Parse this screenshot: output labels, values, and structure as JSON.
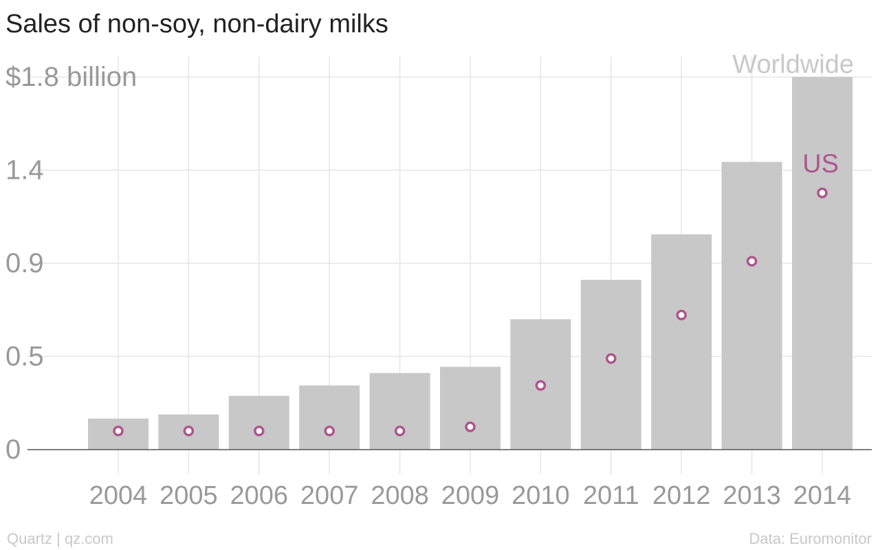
{
  "chart_data": {
    "type": "bar",
    "title": "Sales of non-soy, non-dairy milks",
    "categories": [
      "2004",
      "2005",
      "2006",
      "2007",
      "2008",
      "2009",
      "2010",
      "2011",
      "2012",
      "2013",
      "2014"
    ],
    "series": [
      {
        "name": "Worldwide",
        "mark": "bar",
        "values": [
          0.15,
          0.17,
          0.26,
          0.31,
          0.37,
          0.4,
          0.63,
          0.82,
          1.04,
          1.39,
          1.8
        ]
      },
      {
        "name": "US",
        "mark": "circle",
        "values": [
          0.09,
          0.09,
          0.09,
          0.09,
          0.09,
          0.11,
          0.31,
          0.44,
          0.65,
          0.91,
          1.24
        ]
      }
    ],
    "y_ticks": [
      {
        "value": 0,
        "label": "0"
      },
      {
        "value": 0.45,
        "label": "0.5"
      },
      {
        "value": 0.9,
        "label": "0.9"
      },
      {
        "value": 1.35,
        "label": "1.4"
      },
      {
        "value": 1.8,
        "label": "$1.8 billion"
      }
    ],
    "ylim": [
      0,
      1.8
    ],
    "xlabel": "",
    "ylabel": "",
    "grid": true,
    "colors": {
      "bar": "#c8c8c8",
      "us": "#b0558e",
      "worldwide_label": "#c8c8c8",
      "axis_text": "#999999",
      "gridline": "#e6e6e6",
      "baseline": "#555555"
    }
  },
  "footer": {
    "credit": "Quartz | qz.com",
    "source": "Data: Euromonitor"
  }
}
